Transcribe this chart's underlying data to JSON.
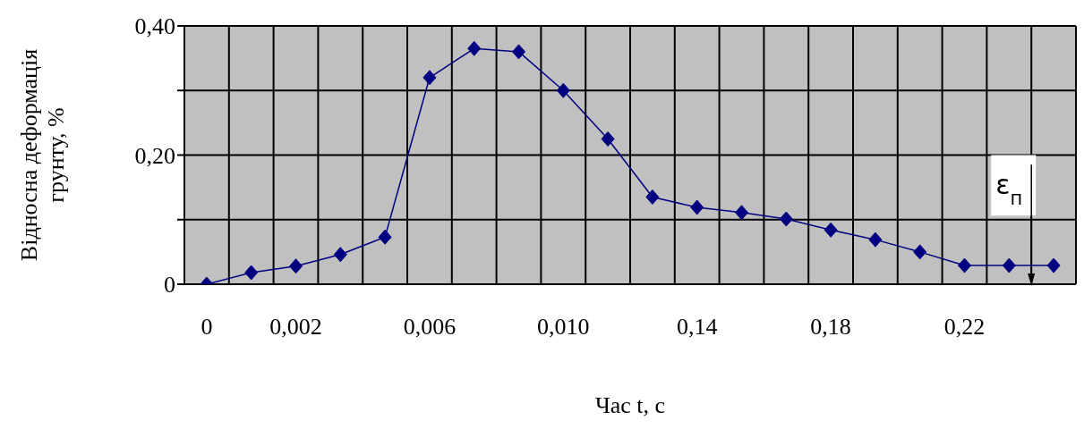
{
  "chart_data": {
    "type": "line",
    "xlabel": "Час t, с",
    "ylabel": "Відносна деформація грунту, %",
    "categories": [
      "0",
      null,
      "0,002",
      null,
      null,
      "0,006",
      null,
      null,
      "0,010",
      null,
      null,
      "0,14",
      null,
      null,
      "0,18",
      null,
      null,
      "0,22",
      null,
      null
    ],
    "series": [
      {
        "color": "#000080",
        "values": [
          0.0,
          0.018,
          0.028,
          0.046,
          0.073,
          0.32,
          0.365,
          0.36,
          0.3,
          0.225,
          0.135,
          0.119,
          0.111,
          0.101,
          0.084,
          0.069,
          0.05,
          0.029,
          0.029,
          0.029
        ]
      }
    ],
    "ylim": [
      0,
      0.4
    ],
    "yticks": [
      0,
      {
        "value": 0.1,
        "label": null
      },
      {
        "value": 0.2,
        "label": "0,20"
      },
      {
        "value": 0.3,
        "label": null
      },
      {
        "value": 0.4,
        "label": "0,40"
      }
    ],
    "grid": true,
    "marker": "diamond",
    "line_style": "solid",
    "annotations": [
      "ε$_{п}$"
    ]
  }
}
